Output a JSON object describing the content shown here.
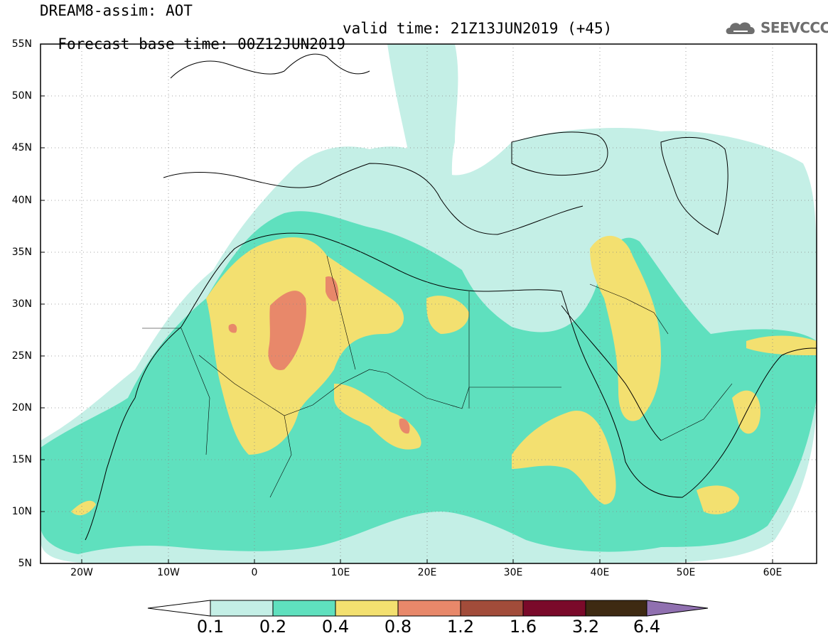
{
  "header": {
    "line1": "DREAM8-assim: AOT",
    "line2_base": "Forecast base time: 00Z12JUN2019",
    "line2_valid": "valid time: 21Z13JUN2019 (+45)"
  },
  "logo": {
    "text": "SEEVCCC",
    "icon": "cloud-logo-icon"
  },
  "axes": {
    "lat_labels": [
      "55N",
      "50N",
      "45N",
      "40N",
      "35N",
      "30N",
      "25N",
      "20N",
      "15N",
      "10N",
      "5N"
    ],
    "lon_labels": [
      "20W",
      "10W",
      "0",
      "10E",
      "20E",
      "30E",
      "40E",
      "50E",
      "60E"
    ]
  },
  "colorbar": {
    "labels": [
      "0.1",
      "0.2",
      "0.4",
      "0.8",
      "1.2",
      "1.6",
      "3.2",
      "6.4"
    ],
    "colors": [
      "#ffffff",
      "#c4efe6",
      "#5fe0be",
      "#f3e070",
      "#e8886a",
      "#a24c3a",
      "#7a0a2a",
      "#3e2a12",
      "#9070b0"
    ]
  },
  "map_colors": {
    "c1": "#c4efe6",
    "c2": "#5fe0be",
    "c3": "#f3e070",
    "c4": "#e8886a"
  }
}
